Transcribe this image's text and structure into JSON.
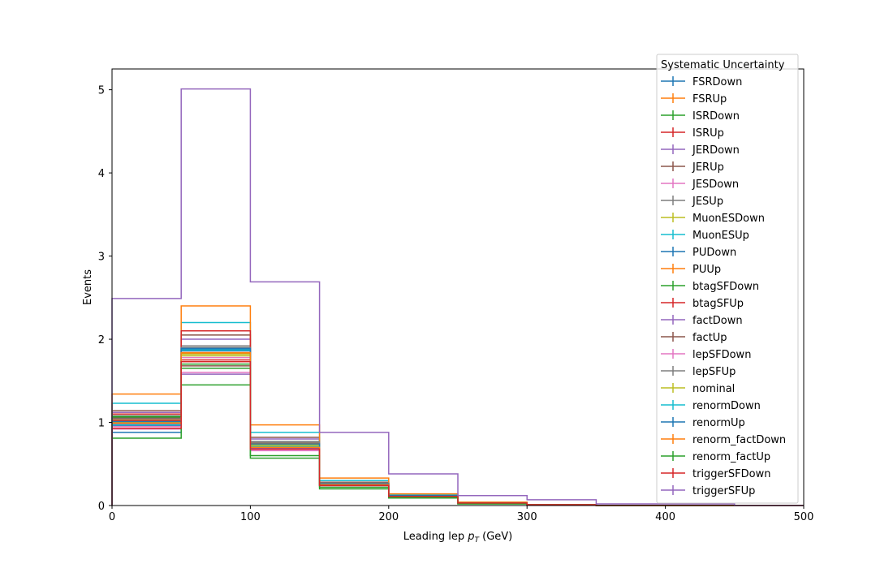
{
  "chart_data": {
    "type": "step-histogram",
    "xlabel": "Leading lep",
    "xlabel_symbol": "p",
    "xlabel_sub": "T",
    "xlabel_unit": "(GeV)",
    "ylabel": "Events",
    "xlim": [
      0,
      500
    ],
    "ylim": [
      0,
      5.25
    ],
    "xticks": [
      0,
      100,
      200,
      300,
      400,
      500
    ],
    "yticks": [
      0,
      1,
      2,
      3,
      4,
      5
    ],
    "grid": false,
    "legend_title": "Systematic Uncertainty",
    "legend_position": "top-right",
    "bin_edges": [
      0,
      50,
      100,
      150,
      200,
      250,
      300,
      350,
      400,
      450,
      500
    ],
    "series": [
      {
        "name": "FSRDown",
        "color": "#1f77b4",
        "values": [
          0.88,
          1.88,
          0.68,
          0.25,
          0.11,
          0.03,
          0.01,
          0.0,
          0.0,
          0.0
        ]
      },
      {
        "name": "FSRUp",
        "color": "#ff7f0e",
        "values": [
          1.03,
          1.83,
          0.75,
          0.27,
          0.12,
          0.03,
          0.01,
          0.0,
          0.0,
          0.0
        ]
      },
      {
        "name": "ISRDown",
        "color": "#2ca02c",
        "values": [
          1.06,
          1.7,
          0.7,
          0.25,
          0.11,
          0.03,
          0.01,
          0.0,
          0.0,
          0.0
        ]
      },
      {
        "name": "ISRUp",
        "color": "#d62728",
        "values": [
          1.1,
          1.75,
          0.72,
          0.26,
          0.12,
          0.03,
          0.01,
          0.0,
          0.0,
          0.0
        ]
      },
      {
        "name": "JERDown",
        "color": "#9467bd",
        "values": [
          1.12,
          2.0,
          0.8,
          0.28,
          0.12,
          0.03,
          0.01,
          0.0,
          0.0,
          0.0
        ]
      },
      {
        "name": "JERUp",
        "color": "#8c564b",
        "values": [
          1.14,
          2.05,
          0.82,
          0.28,
          0.12,
          0.03,
          0.01,
          0.0,
          0.0,
          0.0
        ]
      },
      {
        "name": "JESDown",
        "color": "#e377c2",
        "values": [
          0.92,
          1.6,
          0.66,
          0.24,
          0.11,
          0.03,
          0.01,
          0.0,
          0.0,
          0.0
        ]
      },
      {
        "name": "JESUp",
        "color": "#7f7f7f",
        "values": [
          1.08,
          1.92,
          0.76,
          0.27,
          0.12,
          0.03,
          0.01,
          0.0,
          0.0,
          0.0
        ]
      },
      {
        "name": "MuonESDown",
        "color": "#bcbd22",
        "values": [
          1.0,
          1.8,
          0.72,
          0.26,
          0.12,
          0.03,
          0.01,
          0.0,
          0.0,
          0.0
        ]
      },
      {
        "name": "MuonESUp",
        "color": "#17becf",
        "values": [
          1.23,
          2.2,
          0.88,
          0.3,
          0.13,
          0.04,
          0.01,
          0.0,
          0.0,
          0.0
        ]
      },
      {
        "name": "PUDown",
        "color": "#1f77b4",
        "values": [
          0.96,
          1.86,
          0.7,
          0.25,
          0.11,
          0.03,
          0.01,
          0.0,
          0.0,
          0.0
        ]
      },
      {
        "name": "PUUp",
        "color": "#ff7f0e",
        "values": [
          1.34,
          2.4,
          0.97,
          0.33,
          0.14,
          0.04,
          0.01,
          0.0,
          0.0,
          0.0
        ]
      },
      {
        "name": "btagSFDown",
        "color": "#2ca02c",
        "values": [
          0.81,
          1.45,
          0.57,
          0.2,
          0.09,
          0.02,
          0.01,
          0.0,
          0.0,
          0.0
        ]
      },
      {
        "name": "btagSFUp",
        "color": "#d62728",
        "values": [
          1.02,
          2.1,
          0.74,
          0.26,
          0.12,
          0.03,
          0.01,
          0.0,
          0.0,
          0.0
        ]
      },
      {
        "name": "factDown",
        "color": "#9467bd",
        "values": [
          0.98,
          1.58,
          0.69,
          0.24,
          0.11,
          0.03,
          0.01,
          0.0,
          0.0,
          0.0
        ]
      },
      {
        "name": "factUp",
        "color": "#8c564b",
        "values": [
          1.05,
          1.68,
          0.73,
          0.26,
          0.12,
          0.03,
          0.01,
          0.0,
          0.0,
          0.0
        ]
      },
      {
        "name": "lepSFDown",
        "color": "#e377c2",
        "values": [
          0.95,
          1.78,
          0.67,
          0.24,
          0.11,
          0.03,
          0.01,
          0.0,
          0.0,
          0.0
        ]
      },
      {
        "name": "lepSFUp",
        "color": "#7f7f7f",
        "values": [
          1.04,
          1.9,
          0.77,
          0.27,
          0.12,
          0.03,
          0.01,
          0.0,
          0.0,
          0.0
        ]
      },
      {
        "name": "nominal",
        "color": "#bcbd22",
        "values": [
          1.0,
          1.82,
          0.73,
          0.26,
          0.12,
          0.03,
          0.01,
          0.0,
          0.0,
          0.0
        ]
      },
      {
        "name": "renormDown",
        "color": "#17becf",
        "values": [
          0.97,
          1.87,
          0.71,
          0.25,
          0.11,
          0.03,
          0.01,
          0.0,
          0.0,
          0.0
        ]
      },
      {
        "name": "renormUp",
        "color": "#1f77b4",
        "values": [
          1.01,
          1.89,
          0.74,
          0.26,
          0.12,
          0.03,
          0.01,
          0.0,
          0.0,
          0.0
        ]
      },
      {
        "name": "renorm_factDown",
        "color": "#ff7f0e",
        "values": [
          0.99,
          1.84,
          0.7,
          0.25,
          0.11,
          0.03,
          0.01,
          0.0,
          0.0,
          0.0
        ]
      },
      {
        "name": "renorm_factUp",
        "color": "#2ca02c",
        "values": [
          1.07,
          1.65,
          0.6,
          0.22,
          0.1,
          0.02,
          0.01,
          0.0,
          0.0,
          0.0
        ]
      },
      {
        "name": "triggerSFDown",
        "color": "#d62728",
        "values": [
          0.93,
          1.73,
          0.68,
          0.24,
          0.11,
          0.03,
          0.01,
          0.0,
          0.0,
          0.0
        ]
      },
      {
        "name": "triggerSFUp",
        "color": "#9467bd",
        "values": [
          2.49,
          5.01,
          2.69,
          0.88,
          0.38,
          0.12,
          0.07,
          0.02,
          0.02,
          0.0
        ]
      }
    ]
  }
}
